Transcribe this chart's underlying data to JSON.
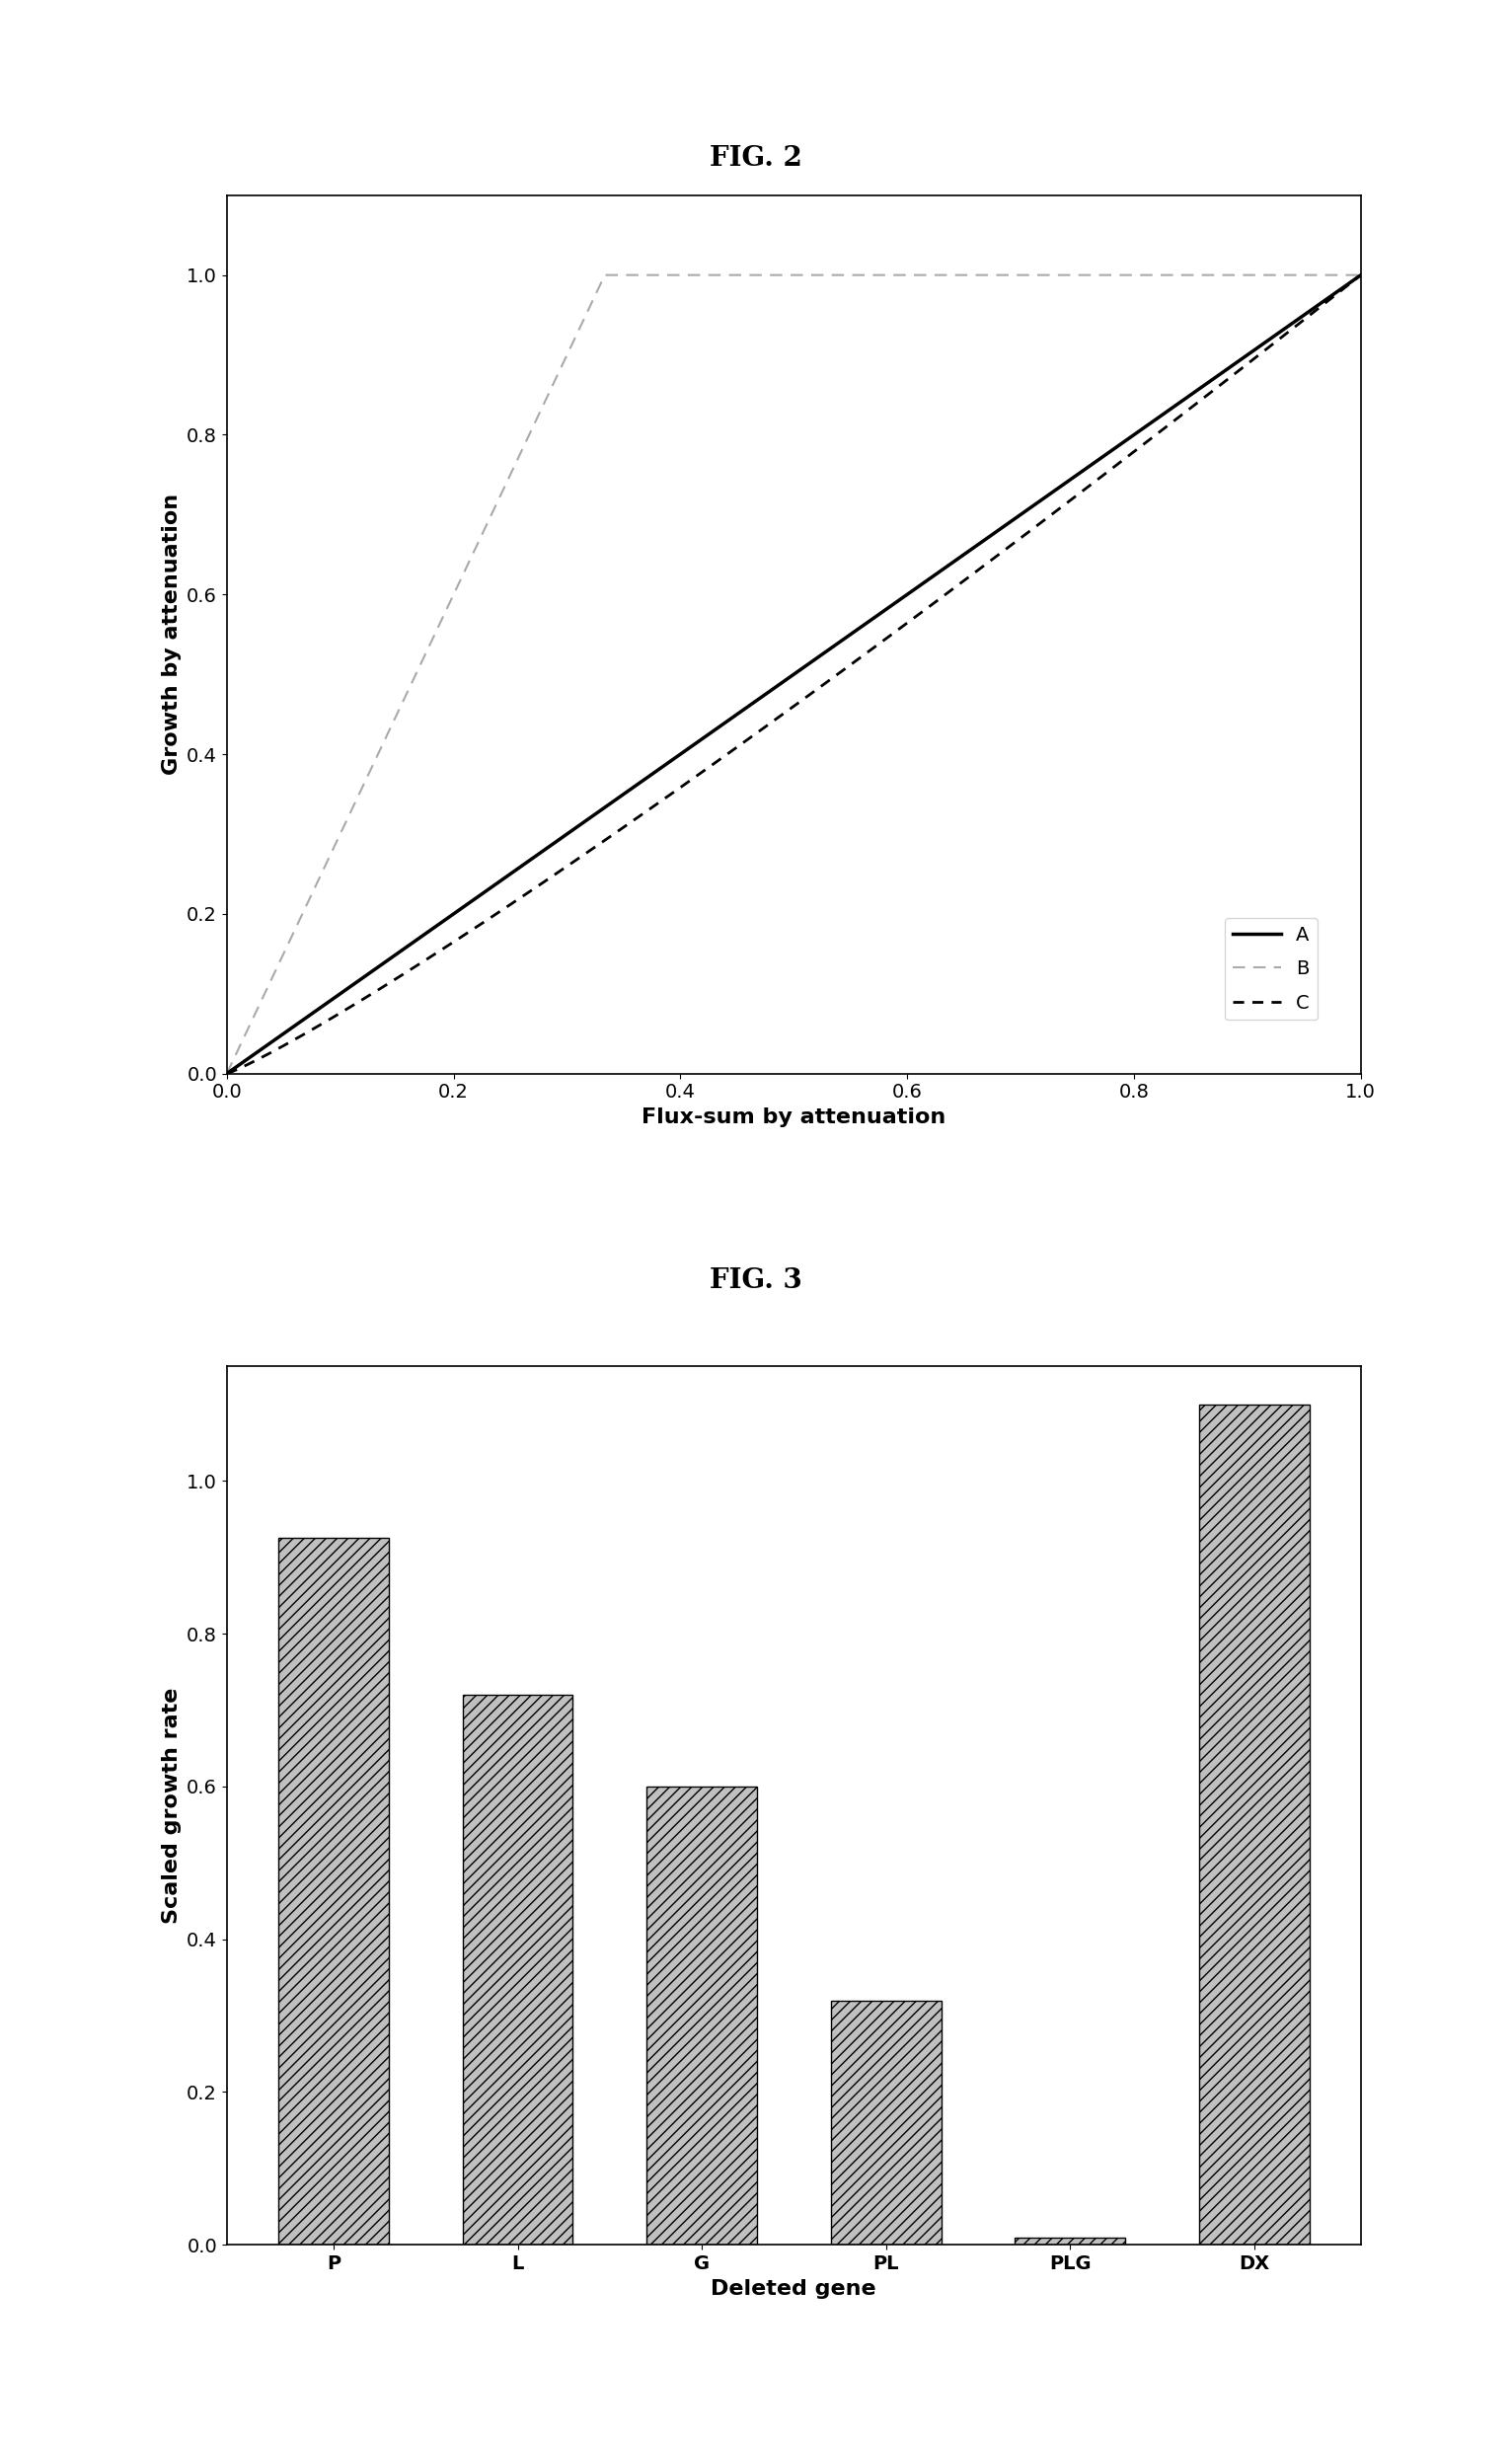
{
  "fig2_title": "FIG. 2",
  "fig3_title": "FIG. 3",
  "fig2_xlabel": "Flux-sum by attenuation",
  "fig2_ylabel": "Growth by attenuation",
  "fig3_xlabel": "Deleted gene",
  "fig3_ylabel": "Scaled growth rate",
  "fig2_xlim": [
    0.0,
    1.0
  ],
  "fig2_ylim": [
    0.0,
    1.1
  ],
  "fig3_ylim": [
    0.0,
    1.15
  ],
  "line_A_color": "#000000",
  "line_B_color": "#aaaaaa",
  "line_C_color": "#000000",
  "bar_color": "#c0c0c0",
  "bar_hatch": "///",
  "bar_edge_color": "#000000",
  "bar_categories": [
    "P",
    "L",
    "G",
    "PL",
    "PLG",
    "DX"
  ],
  "bar_values": [
    0.925,
    0.72,
    0.6,
    0.32,
    0.01,
    1.1
  ],
  "background_color": "#ffffff",
  "fig2_title_fontsize": 20,
  "fig3_title_fontsize": 20,
  "axis_label_fontsize": 16,
  "tick_label_fontsize": 14,
  "legend_fontsize": 14,
  "lineB_slope": 3.0,
  "lineC_power": 1.12
}
